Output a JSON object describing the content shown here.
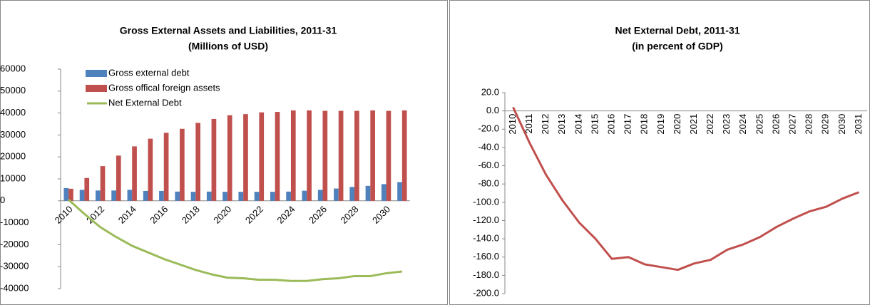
{
  "chart_data": [
    {
      "type": "bar",
      "title": "Gross External Assets and Liabilities,  2011-31",
      "subtitle": "(Millions of USD)",
      "categories": [
        "2010",
        null,
        "2012",
        null,
        "2014",
        null,
        "2016",
        null,
        "2018",
        null,
        "2020",
        null,
        "2022",
        null,
        "2024",
        null,
        "2026",
        null,
        "2028",
        null,
        "2030",
        null
      ],
      "series": [
        {
          "name": "Gross external debt",
          "color": "#4f81bd",
          "type": "bar",
          "values": [
            5800,
            5000,
            4700,
            4700,
            5000,
            4500,
            4500,
            4200,
            4100,
            4200,
            4100,
            4100,
            4100,
            4100,
            4200,
            4600,
            5000,
            5600,
            6300,
            6800,
            7600,
            8500
          ]
        },
        {
          "name": "Gross offical foreign assets",
          "color": "#c0504d",
          "type": "bar",
          "values": [
            5500,
            10400,
            15800,
            20600,
            24800,
            28300,
            31000,
            32800,
            35500,
            37300,
            39000,
            39500,
            40300,
            40500,
            41200,
            41200,
            41000,
            41000,
            41000,
            41200,
            41000,
            41200
          ]
        },
        {
          "name": "Net External Debt",
          "color": "#9bbb59",
          "type": "line",
          "values": [
            500,
            -6000,
            -12000,
            -16500,
            -20500,
            -23500,
            -26500,
            -29000,
            -31500,
            -33500,
            -35000,
            -35300,
            -36000,
            -36000,
            -36500,
            -36500,
            -35700,
            -35300,
            -34300,
            -34300,
            -33000,
            -32200
          ]
        }
      ],
      "ylim": [
        -40000,
        60000
      ],
      "yticks": [
        -40000,
        -30000,
        -20000,
        -10000,
        0,
        10000,
        20000,
        30000,
        40000,
        50000,
        60000
      ],
      "legend": "top-left"
    },
    {
      "type": "line",
      "title": "Net External Debt, 2011-31",
      "subtitle": "(in percent of GDP)",
      "categories": [
        "2010",
        "2011",
        "2012",
        "2013",
        "2014",
        "2015",
        "2016",
        "2017",
        "2018",
        "2019",
        "2020",
        "2021",
        "2022",
        "2023",
        "2024",
        "2025",
        "2026",
        "2027",
        "2028",
        "2029",
        "2030",
        "2031"
      ],
      "values": [
        4,
        -35,
        -70,
        -98,
        -122,
        -140,
        -162,
        -160,
        -168,
        -171,
        -174,
        -167,
        -163,
        -152,
        -146,
        -138,
        -127,
        -118,
        -110,
        -105,
        -96,
        -89
      ],
      "color": "#c0504d",
      "ylim": [
        -200,
        20
      ],
      "yticks": [
        {
          "value": -200,
          "label": "-200.0"
        },
        {
          "value": -180,
          "label": "-180.0"
        },
        {
          "value": -160,
          "label": "-160.0"
        },
        {
          "value": -140,
          "label": "-140.0"
        },
        {
          "value": -120,
          "label": "-120.0"
        },
        {
          "value": -100,
          "label": "-100.0"
        },
        {
          "value": -80,
          "label": "-80.0"
        },
        {
          "value": -60,
          "label": "-60.0"
        },
        {
          "value": -40,
          "label": "-40.0"
        },
        {
          "value": -20,
          "label": "-20.0"
        },
        {
          "value": 0,
          "label": "0.0"
        },
        {
          "value": 20,
          "label": "20.0"
        }
      ]
    }
  ]
}
